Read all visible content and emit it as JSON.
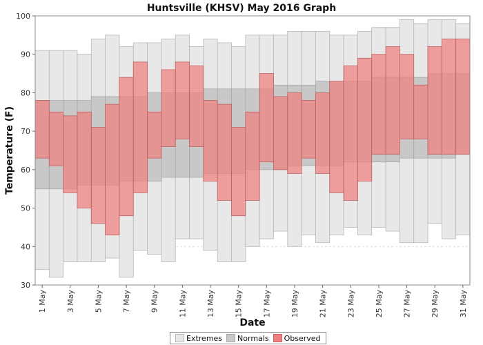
{
  "chart_data": {
    "type": "bar",
    "title": "Huntsville (KHSV) May 2016 Graph",
    "xlabel": "Date",
    "ylabel": "Temperature (F)",
    "ylim": [
      30,
      100
    ],
    "yticks": [
      30,
      40,
      50,
      60,
      70,
      80,
      90,
      100
    ],
    "grid": true,
    "legend_position": "bottom",
    "colors": {
      "extremes": "#e8e8e8",
      "normals": "#c8c8c8",
      "observed": "#f08080"
    },
    "days": [
      1,
      2,
      3,
      4,
      5,
      6,
      7,
      8,
      9,
      10,
      11,
      12,
      13,
      14,
      15,
      16,
      17,
      18,
      19,
      20,
      21,
      22,
      23,
      24,
      25,
      26,
      27,
      28,
      29,
      30,
      31
    ],
    "x_tick_labels": [
      "1 May",
      "3 May",
      "5 May",
      "7 May",
      "9 May",
      "11 May",
      "13 May",
      "15 May",
      "17 May",
      "19 May",
      "21 May",
      "23 May",
      "25 May",
      "27 May",
      "29 May",
      "31 May"
    ],
    "series": [
      {
        "name": "Extremes",
        "low": [
          34,
          32,
          36,
          36,
          36,
          37,
          32,
          39,
          38,
          36,
          42,
          42,
          39,
          36,
          36,
          40,
          42,
          44,
          40,
          43,
          41,
          43,
          45,
          43,
          45,
          44,
          41,
          41,
          46,
          42,
          43
        ],
        "high": [
          91,
          91,
          91,
          90,
          94,
          95,
          92,
          93,
          93,
          94,
          95,
          92,
          94,
          93,
          92,
          95,
          95,
          95,
          96,
          96,
          96,
          95,
          95,
          96,
          97,
          97,
          99,
          98,
          99,
          99,
          98
        ]
      },
      {
        "name": "Normals",
        "low": [
          55,
          55,
          55,
          56,
          56,
          56,
          57,
          57,
          57,
          58,
          58,
          58,
          59,
          59,
          59,
          60,
          60,
          60,
          61,
          61,
          61,
          61,
          62,
          62,
          62,
          62,
          63,
          63,
          63,
          63,
          64
        ],
        "high": [
          78,
          78,
          78,
          78,
          79,
          79,
          79,
          79,
          80,
          80,
          80,
          80,
          81,
          81,
          81,
          81,
          81,
          82,
          82,
          82,
          83,
          83,
          83,
          83,
          84,
          84,
          84,
          84,
          85,
          85,
          85
        ]
      },
      {
        "name": "Observed",
        "low": [
          63,
          61,
          54,
          50,
          46,
          43,
          48,
          54,
          63,
          66,
          68,
          66,
          57,
          52,
          48,
          52,
          62,
          60,
          59,
          63,
          59,
          54,
          52,
          57,
          64,
          64,
          68,
          68,
          64,
          64,
          64
        ],
        "high": [
          78,
          75,
          74,
          75,
          71,
          77,
          84,
          88,
          75,
          86,
          88,
          87,
          78,
          77,
          71,
          75,
          85,
          79,
          80,
          78,
          80,
          83,
          87,
          89,
          90,
          92,
          90,
          82,
          92,
          94,
          94
        ]
      }
    ]
  }
}
